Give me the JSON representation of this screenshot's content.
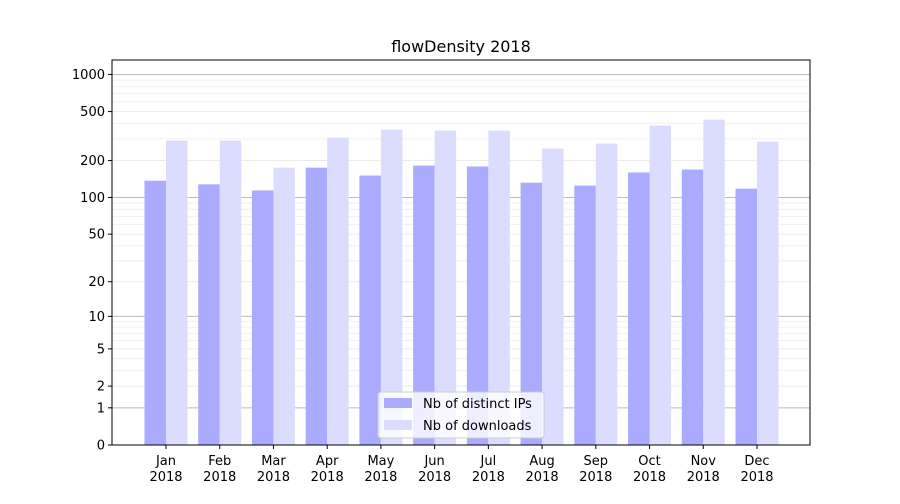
{
  "chart_data": {
    "type": "bar",
    "title": "flowDensity 2018",
    "xlabel": "",
    "ylabel": "",
    "yscale": "symlog",
    "ylim": [
      0,
      1300
    ],
    "yticks": [
      0,
      1,
      2,
      5,
      10,
      20,
      50,
      100,
      200,
      500,
      1000
    ],
    "categories": [
      "Jan\n2018",
      "Feb\n2018",
      "Mar\n2018",
      "Apr\n2018",
      "May\n2018",
      "Jun\n2018",
      "Jul\n2018",
      "Aug\n2018",
      "Sep\n2018",
      "Oct\n2018",
      "Nov\n2018",
      "Dec\n2018"
    ],
    "series": [
      {
        "name": "Nb of distinct IPs",
        "color": "#aaaaff",
        "values": [
          137,
          128,
          114,
          175,
          151,
          182,
          179,
          132,
          125,
          160,
          169,
          118
        ]
      },
      {
        "name": "Nb of downloads",
        "color": "#dcdcff",
        "values": [
          290,
          290,
          175,
          307,
          357,
          350,
          350,
          250,
          275,
          385,
          430,
          285
        ]
      }
    ],
    "legend": "lower-center",
    "grid": true
  }
}
